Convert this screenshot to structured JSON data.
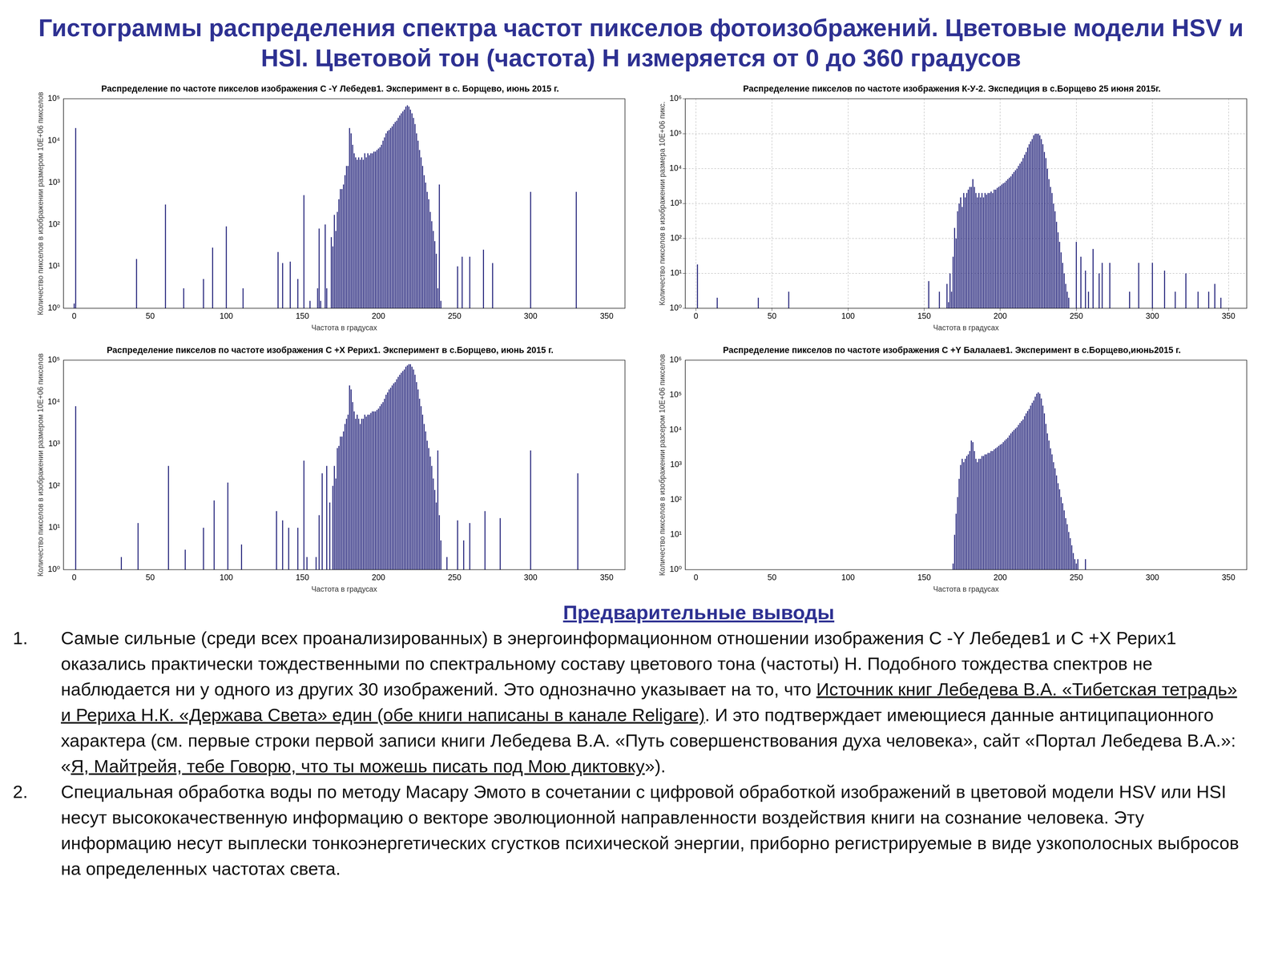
{
  "header": {
    "title": "Гистограммы распределения спектра частот пикселов фотоизображений. Цветовые модели HSV  и HSI. Цветовой тон (частота) Н измеряется от 0 до 360 градусов"
  },
  "chart_data": [
    {
      "type": "bar",
      "title": "Распределение по частоте пикселов изображения С -Y Лебедев1. Эксперимент в с. Борщево, июнь 2015 г.",
      "x_label": "Частота в градусах",
      "y_label": "Количество пикселов в изображении размером 10E+06 пикселов",
      "x": [
        0,
        1,
        41,
        60,
        72,
        85,
        91,
        100,
        111,
        134,
        137,
        142,
        147,
        151,
        155,
        160,
        161,
        162,
        165,
        166,
        169,
        170,
        171,
        172,
        173,
        174,
        175,
        176,
        177,
        178,
        179,
        180,
        181,
        182,
        183,
        184,
        185,
        186,
        187,
        188,
        189,
        190,
        191,
        192,
        193,
        194,
        195,
        196,
        197,
        198,
        199,
        200,
        201,
        202,
        203,
        204,
        205,
        206,
        207,
        208,
        209,
        210,
        211,
        212,
        213,
        214,
        215,
        216,
        217,
        218,
        219,
        220,
        221,
        222,
        223,
        224,
        225,
        226,
        227,
        228,
        229,
        230,
        231,
        232,
        233,
        234,
        235,
        236,
        237,
        238,
        239,
        240,
        241,
        252,
        255,
        260,
        269,
        275,
        300,
        330
      ],
      "values": [
        1.3,
        20000,
        15,
        300,
        3,
        5,
        28,
        90,
        3,
        22,
        12,
        13,
        5,
        500,
        1.5,
        3,
        80,
        1.5,
        100,
        3,
        50,
        30,
        170,
        70,
        200,
        400,
        700,
        700,
        900,
        1500,
        2500,
        2500,
        20000,
        15000,
        8000,
        5000,
        4000,
        3500,
        4000,
        3500,
        4000,
        3500,
        5000,
        4000,
        5000,
        4500,
        5000,
        5000,
        5500,
        5500,
        6000,
        6500,
        7000,
        8000,
        10000,
        12000,
        15000,
        17000,
        18000,
        20000,
        22000,
        25000,
        28000,
        30000,
        35000,
        40000,
        45000,
        50000,
        55000,
        65000,
        70000,
        65000,
        55000,
        45000,
        35000,
        25000,
        15000,
        10000,
        6000,
        4000,
        2500,
        1500,
        1000,
        600,
        400,
        200,
        120,
        70,
        40,
        20,
        3,
        900,
        1.5,
        10,
        17,
        17,
        25,
        12,
        600,
        600
      ],
      "color": "#22227a",
      "xlim": [
        -7,
        362
      ],
      "xticks": [
        0,
        50,
        100,
        150,
        200,
        250,
        300,
        350
      ],
      "ylim": [
        1,
        100000
      ],
      "yticks": [
        {
          "value": 1,
          "label": "10⁰"
        },
        {
          "value": 10,
          "label": "10¹"
        },
        {
          "value": 100,
          "label": "10²"
        },
        {
          "value": 1000,
          "label": "10³"
        },
        {
          "value": 10000,
          "label": "10⁴"
        },
        {
          "value": 100000,
          "label": "10⁵"
        }
      ],
      "log": "y",
      "grid": false
    },
    {
      "type": "bar",
      "title": "Распределение пикселов по частоте изображения К-У-2. Экспедиция в с.Борщево 25 июня 2015г.",
      "x_label": "Частота в градусах",
      "y_label": "Количество пикселов в изображении размера 10E+06 пикс.",
      "x": [
        1,
        14,
        41,
        61,
        153,
        160,
        165,
        166,
        167,
        168,
        169,
        170,
        171,
        172,
        173,
        174,
        175,
        176,
        177,
        178,
        179,
        180,
        181,
        182,
        183,
        184,
        185,
        186,
        187,
        188,
        189,
        190,
        191,
        192,
        193,
        194,
        195,
        196,
        197,
        198,
        199,
        200,
        201,
        202,
        203,
        204,
        205,
        206,
        207,
        208,
        209,
        210,
        211,
        212,
        213,
        214,
        215,
        216,
        217,
        218,
        219,
        220,
        221,
        222,
        223,
        224,
        225,
        226,
        227,
        228,
        229,
        230,
        231,
        232,
        233,
        234,
        235,
        236,
        237,
        238,
        239,
        240,
        241,
        242,
        243,
        244,
        245,
        250,
        253,
        256,
        258,
        261,
        265,
        267,
        272,
        285,
        291,
        300,
        308,
        315,
        322,
        330,
        337,
        341,
        345
      ],
      "values": [
        18,
        2,
        2,
        3,
        6,
        3,
        5,
        1.5,
        10,
        3,
        30,
        200,
        100,
        600,
        1000,
        1500,
        800,
        2000,
        1500,
        2000,
        2500,
        3000,
        3000,
        5000,
        3000,
        2000,
        1500,
        2000,
        1500,
        2000,
        1500,
        2000,
        1800,
        2000,
        2000,
        2200,
        2000,
        2500,
        2500,
        2800,
        3000,
        3200,
        3500,
        3800,
        4000,
        4500,
        5000,
        5500,
        6000,
        7000,
        8000,
        9000,
        10000,
        12000,
        14000,
        16000,
        20000,
        25000,
        30000,
        40000,
        50000,
        60000,
        70000,
        90000,
        100000,
        100000,
        100000,
        90000,
        70000,
        50000,
        30000,
        20000,
        10000,
        5000,
        3000,
        2000,
        1000,
        600,
        300,
        150,
        80,
        40,
        20,
        10,
        5,
        3,
        2,
        80,
        30,
        12,
        3,
        50,
        10,
        20,
        20,
        3,
        20,
        20,
        12,
        3,
        10,
        3,
        3,
        5,
        2
      ],
      "color": "#22227a",
      "xlim": [
        -7,
        362
      ],
      "xticks": [
        0,
        50,
        100,
        150,
        200,
        250,
        300,
        350
      ],
      "ylim": [
        1,
        1000000
      ],
      "yticks": [
        {
          "value": 1,
          "label": "10⁰"
        },
        {
          "value": 10,
          "label": "10¹"
        },
        {
          "value": 100,
          "label": "10²"
        },
        {
          "value": 1000,
          "label": "10³"
        },
        {
          "value": 10000,
          "label": "10⁴"
        },
        {
          "value": 100000,
          "label": "10⁵"
        },
        {
          "value": 1000000,
          "label": "10⁶"
        }
      ],
      "log": "y",
      "grid": true
    },
    {
      "type": "bar",
      "title": "Распределение пикселов по частоте изображения С +X Рерих1. Эксперимент в с.Борщево, июнь 2015 г.",
      "x_label": "Частота в градусах",
      "y_label": "Количество пикселов в изображении размером 10E+06 пикселов",
      "x": [
        1,
        31,
        42,
        62,
        73,
        85,
        92,
        101,
        110,
        133,
        137,
        141,
        147,
        151,
        153,
        159,
        161,
        163,
        166,
        168,
        170,
        171,
        172,
        173,
        174,
        175,
        176,
        177,
        178,
        179,
        180,
        181,
        182,
        183,
        184,
        185,
        186,
        187,
        188,
        189,
        190,
        191,
        192,
        193,
        194,
        195,
        196,
        197,
        198,
        199,
        200,
        201,
        202,
        203,
        204,
        205,
        206,
        207,
        208,
        209,
        210,
        211,
        212,
        213,
        214,
        215,
        216,
        217,
        218,
        219,
        220,
        221,
        222,
        223,
        224,
        225,
        226,
        227,
        228,
        229,
        230,
        231,
        232,
        233,
        234,
        235,
        236,
        237,
        238,
        239,
        240,
        241,
        245,
        252,
        256,
        260,
        270,
        280,
        300,
        331
      ],
      "values": [
        8000,
        2,
        13,
        300,
        3,
        10,
        45,
        120,
        4,
        25,
        15,
        10,
        10,
        400,
        2,
        2,
        20,
        200,
        300,
        40,
        100,
        300,
        150,
        800,
        900,
        1500,
        1500,
        2000,
        3000,
        4000,
        5000,
        25000,
        20000,
        10000,
        6000,
        4000,
        5000,
        4000,
        3000,
        4000,
        4000,
        5000,
        4500,
        5000,
        5000,
        5500,
        6000,
        6000,
        6000,
        6500,
        7000,
        8000,
        9000,
        10000,
        12000,
        15000,
        17000,
        20000,
        22000,
        25000,
        28000,
        30000,
        35000,
        40000,
        45000,
        50000,
        55000,
        60000,
        70000,
        75000,
        80000,
        80000,
        70000,
        60000,
        45000,
        30000,
        20000,
        12000,
        8000,
        5000,
        3000,
        2000,
        1200,
        800,
        500,
        300,
        150,
        80,
        40,
        700,
        20,
        5,
        2,
        15,
        5,
        13,
        25,
        17,
        700,
        200
      ],
      "color": "#22227a",
      "xlim": [
        -7,
        362
      ],
      "xticks": [
        0,
        50,
        100,
        150,
        200,
        250,
        300,
        350
      ],
      "ylim": [
        1,
        100000
      ],
      "yticks": [
        {
          "value": 1,
          "label": "10⁰"
        },
        {
          "value": 10,
          "label": "10¹"
        },
        {
          "value": 100,
          "label": "10²"
        },
        {
          "value": 1000,
          "label": "10³"
        },
        {
          "value": 10000,
          "label": "10⁴"
        },
        {
          "value": 100000,
          "label": "10⁵"
        }
      ],
      "log": "y",
      "grid": false
    },
    {
      "type": "bar",
      "title": "Распределение пикселов по частоте изображения С +Y Балалаев1. Эксперимент в с.Борщево,июнь2015 г.",
      "x_label": "Частота в градусах",
      "y_label": "Количество пикселов в изображении разсером 10E+06 пикселов",
      "x": [
        169,
        170,
        171,
        172,
        173,
        174,
        175,
        176,
        177,
        178,
        179,
        180,
        181,
        182,
        183,
        184,
        185,
        186,
        187,
        188,
        189,
        190,
        191,
        192,
        193,
        194,
        195,
        196,
        197,
        198,
        199,
        200,
        201,
        202,
        203,
        204,
        205,
        206,
        207,
        208,
        209,
        210,
        211,
        212,
        213,
        214,
        215,
        216,
        217,
        218,
        219,
        220,
        221,
        222,
        223,
        224,
        225,
        226,
        227,
        228,
        229,
        230,
        231,
        232,
        233,
        234,
        235,
        236,
        237,
        238,
        239,
        240,
        241,
        242,
        243,
        244,
        245,
        246,
        247,
        248,
        249,
        250,
        251,
        256
      ],
      "values": [
        1.5,
        10,
        40,
        120,
        400,
        1000,
        1500,
        1200,
        1500,
        1800,
        2000,
        2500,
        5000,
        4500,
        2500,
        1500,
        1200,
        1500,
        1500,
        1800,
        1800,
        2000,
        2000,
        2200,
        2200,
        2500,
        2500,
        2800,
        3000,
        3200,
        3500,
        3800,
        4000,
        4500,
        5000,
        5500,
        6000,
        7000,
        8000,
        9000,
        10000,
        11000,
        12000,
        14000,
        16000,
        18000,
        20000,
        25000,
        30000,
        35000,
        40000,
        50000,
        60000,
        70000,
        90000,
        110000,
        120000,
        110000,
        80000,
        50000,
        30000,
        15000,
        8000,
        5000,
        3000,
        2000,
        1200,
        800,
        500,
        300,
        200,
        120,
        80,
        50,
        30,
        20,
        12,
        8,
        5,
        3,
        2,
        1.5,
        2,
        2
      ],
      "color": "#22227a",
      "xlim": [
        -7,
        362
      ],
      "xticks": [
        0,
        50,
        100,
        150,
        200,
        250,
        300,
        350
      ],
      "ylim": [
        1,
        1000000
      ],
      "yticks": [
        {
          "value": 1,
          "label": "10⁰"
        },
        {
          "value": 10,
          "label": "10¹"
        },
        {
          "value": 100,
          "label": "10²"
        },
        {
          "value": 1000,
          "label": "10³"
        },
        {
          "value": 10000,
          "label": "10⁴"
        },
        {
          "value": 100000,
          "label": "10⁵"
        },
        {
          "value": 1000000,
          "label": "10⁶"
        }
      ],
      "log": "y",
      "grid": false
    }
  ],
  "conclusions": {
    "heading": "Предварительные выводы",
    "items": [
      {
        "number": "1.",
        "segments": [
          {
            "text": "Самые сильные (среди всех проанализированных) в энергоинформационном отношении изображения С -Y Лебедев1 и С +X Рерих1 оказались практически тождественными по спектральному составу цветового тона (частоты) Н. Подобного тождества спектров не наблюдается ни у одного из других 30 изображений. Это однозначно указывает на то, что "
          },
          {
            "text": "Источник книг Лебедева В.А. «Тибетская тетрадь» и Рериха Н.К. «Держава Света» един (обе книги написаны в канале Religare)",
            "underline": true
          },
          {
            "text": ". И это подтверждает имеющиеся данные антиципационного характера (см. первые строки первой записи книги Лебедева В.А. «Путь совершенствования духа человека», сайт «Портал Лебедева В.А.»: «"
          },
          {
            "text": "Я, Майтрейя, тебе Говорю, что ты можешь писать под Мою диктовку",
            "underline": true
          },
          {
            "text": "»)."
          }
        ]
      },
      {
        "number": "2.",
        "segments": [
          {
            "text": "Специальная обработка воды по методу Масару Эмото в сочетании с цифровой обработкой изображений в цветовой модели HSV или HSI несут высококачественную информацию о векторе эволюционной направленности воздействия книги на сознание человека.   Эту информацию несут выплески тонкоэнергетических сгустков психической энергии, приборно регистрируемые в виде узкополосных выбросов на определенных частотах света."
          }
        ]
      }
    ]
  }
}
